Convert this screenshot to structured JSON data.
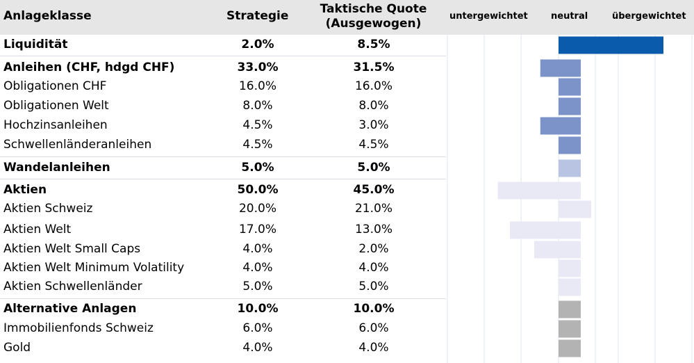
{
  "header": {
    "asset_class": "Anlageklasse",
    "strategy": "Strategie",
    "tactical_line1": "Taktische Quote",
    "tactical_line2": "(Ausgewogen)"
  },
  "scale": {
    "under": "untergewichtet",
    "neutral": "neutral",
    "over": "übergewichtet"
  },
  "colors": {
    "liquidity": "#0a5bab",
    "bonds": "#7b93c8",
    "convertibles": "#b9c4e2",
    "equities": "#e8e9f5",
    "alternatives": "#b3b3b3",
    "header_bg": "#e6e6e6",
    "grid": "#dfe4ee"
  },
  "chart_data": {
    "type": "table",
    "columns": [
      "Anlageklasse",
      "Strategie",
      "Taktische Quote (Ausgewogen)"
    ],
    "bar_note": "bars show tactical quota relative to strategy (neutral)",
    "rows": [
      {
        "label": "Liquidität",
        "strategy": "2.0%",
        "tactical": "8.5%",
        "s": 2.0,
        "t": 8.5,
        "bold": true,
        "group": "liquidity"
      },
      {
        "label": "Anleihen (CHF, hdgd CHF)",
        "strategy": "33.0%",
        "tactical": "31.5%",
        "s": 33.0,
        "t": 31.5,
        "bold": true,
        "group": "bonds"
      },
      {
        "label": "Obligationen CHF",
        "strategy": "16.0%",
        "tactical": "16.0%",
        "s": 16.0,
        "t": 16.0,
        "bold": false,
        "group": "bonds"
      },
      {
        "label": "Obligationen Welt",
        "strategy": "8.0%",
        "tactical": "8.0%",
        "s": 8.0,
        "t": 8.0,
        "bold": false,
        "group": "bonds"
      },
      {
        "label": "Hochzinsanleihen",
        "strategy": "4.5%",
        "tactical": "3.0%",
        "s": 4.5,
        "t": 3.0,
        "bold": false,
        "group": "bonds"
      },
      {
        "label": "Schwellenländeranleihen",
        "strategy": "4.5%",
        "tactical": "4.5%",
        "s": 4.5,
        "t": 4.5,
        "bold": false,
        "group": "bonds"
      },
      {
        "label": "Wandelanleihen",
        "strategy": "5.0%",
        "tactical": "5.0%",
        "s": 5.0,
        "t": 5.0,
        "bold": true,
        "group": "convertibles"
      },
      {
        "label": "Aktien",
        "strategy": "50.0%",
        "tactical": "45.0%",
        "s": 50.0,
        "t": 45.0,
        "bold": true,
        "group": "equities"
      },
      {
        "label": "Aktien Schweiz",
        "strategy": "20.0%",
        "tactical": "21.0%",
        "s": 20.0,
        "t": 21.0,
        "bold": false,
        "group": "equities"
      },
      {
        "label": "Aktien Welt",
        "strategy": "17.0%",
        "tactical": "13.0%",
        "s": 17.0,
        "t": 13.0,
        "bold": false,
        "group": "equities"
      },
      {
        "label": "Aktien Welt Small Caps",
        "strategy": "4.0%",
        "tactical": "2.0%",
        "s": 4.0,
        "t": 2.0,
        "bold": false,
        "group": "equities"
      },
      {
        "label": "Aktien Welt Minimum Volatility",
        "strategy": "4.0%",
        "tactical": "4.0%",
        "s": 4.0,
        "t": 4.0,
        "bold": false,
        "group": "equities"
      },
      {
        "label": "Aktien Schwellenländer",
        "strategy": "5.0%",
        "tactical": "5.0%",
        "s": 5.0,
        "t": 5.0,
        "bold": false,
        "group": "equities"
      },
      {
        "label": "Alternative Anlagen",
        "strategy": "10.0%",
        "tactical": "10.0%",
        "s": 10.0,
        "t": 10.0,
        "bold": true,
        "group": "alternatives"
      },
      {
        "label": "Immobilienfonds Schweiz",
        "strategy": "6.0%",
        "tactical": "6.0%",
        "s": 6.0,
        "t": 6.0,
        "bold": false,
        "group": "alternatives"
      },
      {
        "label": "Gold",
        "strategy": "4.0%",
        "tactical": "4.0%",
        "s": 4.0,
        "t": 4.0,
        "bold": false,
        "group": "alternatives"
      }
    ]
  }
}
